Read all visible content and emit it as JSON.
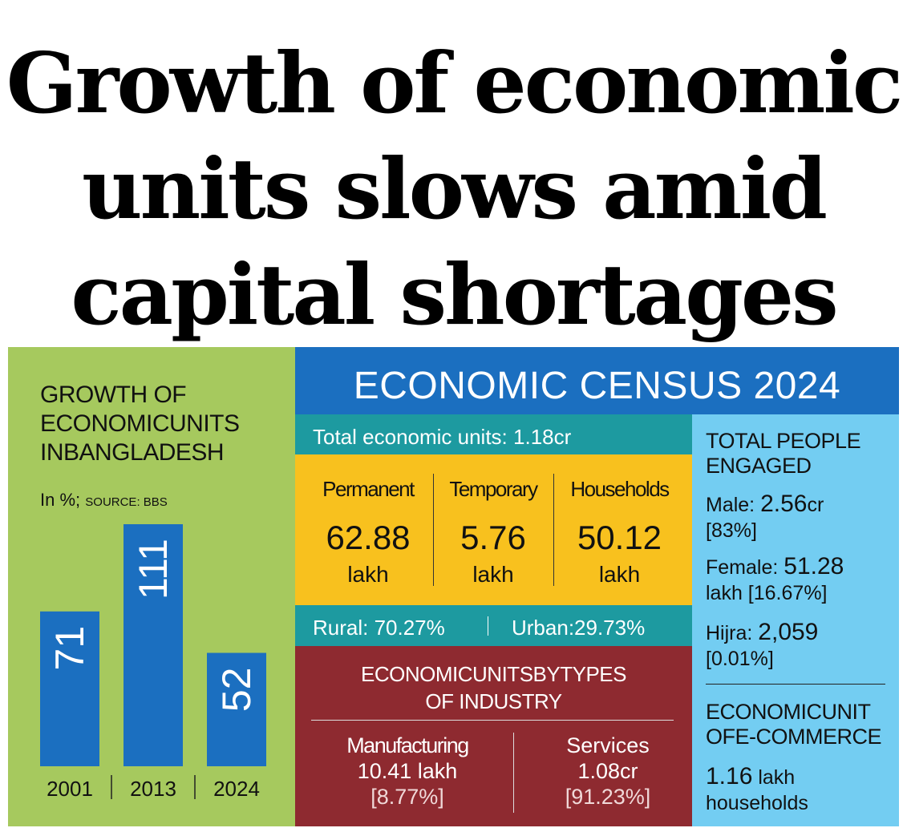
{
  "headline": {
    "line1": "Growth of economic",
    "line2": "units slows amid",
    "line3": "capital shortages"
  },
  "chart_panel": {
    "title_line1": "GROWTH OF",
    "title_line2": "ECONOMICUNITS",
    "title_line3": "INBANGLADESH",
    "subtitle": "In %;",
    "source": "SOURCE: BBS"
  },
  "chart_data": {
    "type": "bar",
    "title": "GROWTH OF ECONOMICUNITS INBANGLADESH",
    "xlabel": "",
    "ylabel": "In %",
    "categories": [
      "2001",
      "2013",
      "2024"
    ],
    "values": [
      71,
      111,
      52
    ],
    "value_labels": [
      "71",
      "111",
      "52"
    ],
    "ylim": [
      0,
      111
    ],
    "grid": false,
    "bar_color": "#1b6fc0"
  },
  "census": {
    "heading": "ECONOMIC CENSUS 2024",
    "total": "Total economic units: 1.18cr",
    "types": [
      {
        "label": "Permanent",
        "value": "62.88",
        "unit": "lakh"
      },
      {
        "label": "Temporary",
        "value": "5.76",
        "unit": "lakh"
      },
      {
        "label": "Households",
        "value": "50.12",
        "unit": "lakh"
      }
    ],
    "rural": "Rural: 70.27%",
    "urban": "Urban:29.73%",
    "industry_title_line1": "ECONOMICUNITSBYTYPES",
    "industry_title_line2": "OF INDUSTRY",
    "industry": [
      {
        "label": "Manufacturing",
        "value": "10.41 lakh",
        "pct": "[8.77%]"
      },
      {
        "label": "Services",
        "value": "1.08cr",
        "pct": "[91.23%]"
      }
    ]
  },
  "people": {
    "title_line1": "TOTAL PEOPLE",
    "title_line2": "ENGAGED",
    "male_label": "Male:",
    "male_value": "2.56",
    "male_unit": "cr",
    "male_pct": "[83%]",
    "female_label": "Female:",
    "female_value": "51.28",
    "female_pct": "lakh [16.67%]",
    "hijra_label": "Hijra:",
    "hijra_value": "2,059",
    "hijra_pct": "[0.01%]",
    "ecom_title_line1": "ECONOMICUNIT",
    "ecom_title_line2": "OFE-COMMERCE",
    "ecom_value": "1.16",
    "ecom_unit": "lakh",
    "ecom_line2": "households"
  },
  "colors": {
    "green": "#a6c95e",
    "blue": "#1b6fc0",
    "teal": "#1d9aa0",
    "yellow": "#f8c11e",
    "maroon": "#8e2a30",
    "light_blue": "#73cdf2"
  }
}
